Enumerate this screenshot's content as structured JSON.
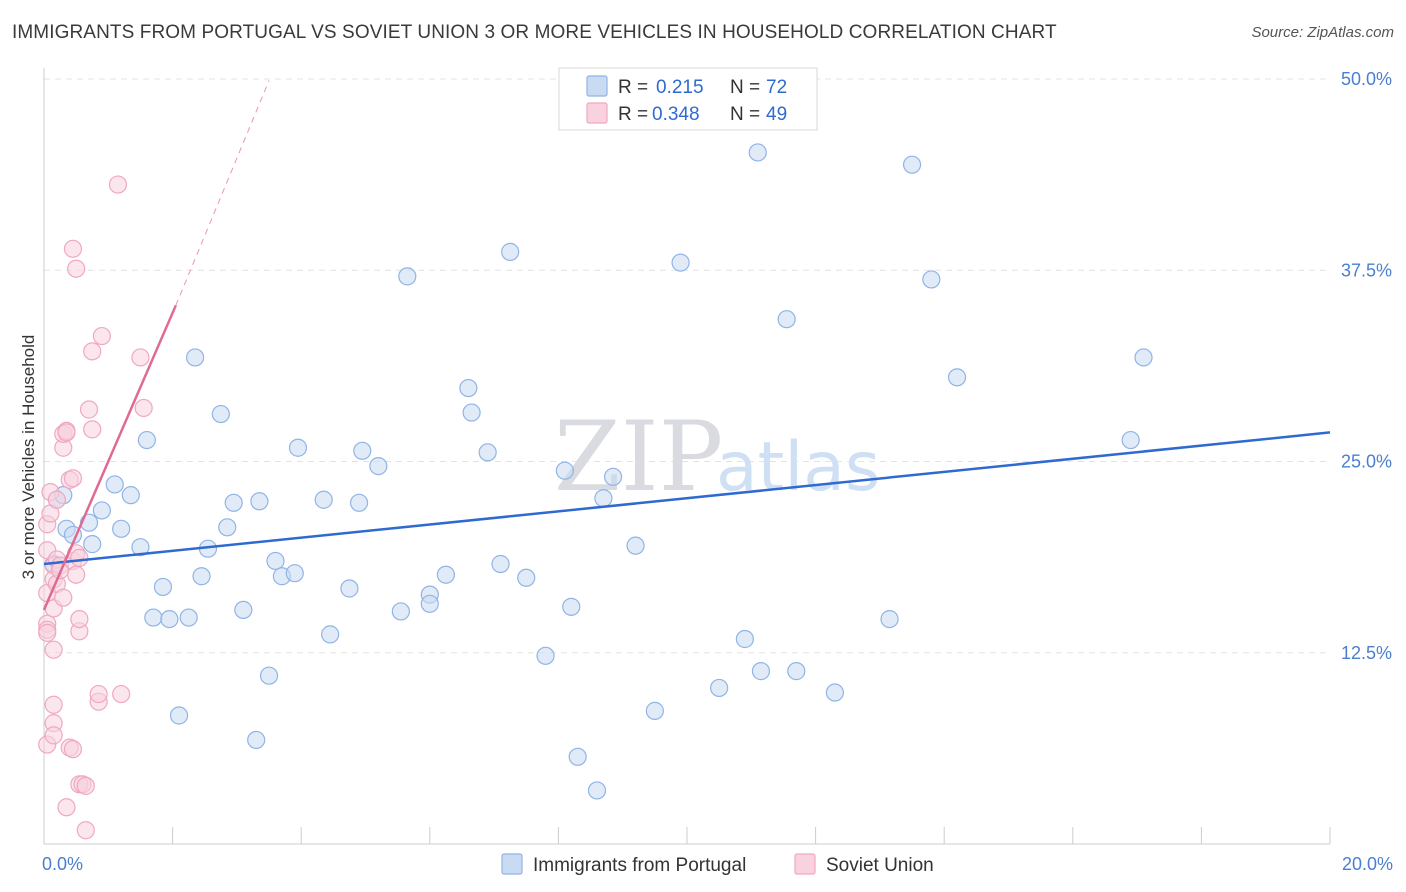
{
  "header": {
    "title": "IMMIGRANTS FROM PORTUGAL VS SOVIET UNION 3 OR MORE VEHICLES IN HOUSEHOLD CORRELATION CHART",
    "source": "Source: ZipAtlas.com"
  },
  "watermark": {
    "zip": "ZIP",
    "atlas": "atlas"
  },
  "chart_data": {
    "type": "scatter",
    "title": "IMMIGRANTS FROM PORTUGAL VS SOVIET UNION 3 OR MORE VEHICLES IN HOUSEHOLD CORRELATION CHART",
    "xlabel": "",
    "ylabel": "3 or more Vehicles in Household",
    "xlim": [
      0,
      20
    ],
    "ylim": [
      0,
      50
    ],
    "x_tick_labels": [
      {
        "value": 0,
        "label": "0.0%"
      },
      {
        "value": 20,
        "label": "20.0%"
      }
    ],
    "y_tick_labels": [
      {
        "value": 12.5,
        "label": "12.5%"
      },
      {
        "value": 25,
        "label": "25.0%"
      },
      {
        "value": 37.5,
        "label": "37.5%"
      },
      {
        "value": 50,
        "label": "50.0%"
      }
    ],
    "legend_position": "top-center",
    "legend": [
      {
        "r_label": "R =",
        "r_value": "0.215",
        "n_label": "N =",
        "n_value": "72"
      },
      {
        "r_label": "R =",
        "r_value": "0.348",
        "n_label": "N =",
        "n_value": "49"
      }
    ],
    "series": [
      {
        "name": "Immigrants from Portugal",
        "color": "#8fb4e6",
        "fill": "#c9dbf3",
        "trend_color": "#2f6ad0",
        "trend": {
          "x": [
            0,
            20
          ],
          "y": [
            18.3,
            26.9
          ],
          "dashed_extension": false
        },
        "points": [
          [
            0.15,
            18.3
          ],
          [
            0.2,
            22.5
          ],
          [
            0.3,
            22.8
          ],
          [
            0.35,
            20.6
          ],
          [
            0.45,
            20.2
          ],
          [
            0.7,
            21.0
          ],
          [
            0.75,
            19.6
          ],
          [
            0.9,
            21.8
          ],
          [
            1.1,
            23.5
          ],
          [
            1.2,
            20.6
          ],
          [
            1.35,
            22.8
          ],
          [
            1.5,
            19.4
          ],
          [
            1.6,
            26.4
          ],
          [
            1.7,
            14.8
          ],
          [
            1.85,
            16.8
          ],
          [
            1.95,
            14.7
          ],
          [
            2.1,
            8.4
          ],
          [
            2.25,
            14.8
          ],
          [
            2.35,
            31.8
          ],
          [
            2.45,
            17.5
          ],
          [
            2.55,
            19.3
          ],
          [
            2.75,
            28.1
          ],
          [
            2.85,
            20.7
          ],
          [
            2.95,
            22.3
          ],
          [
            3.1,
            15.3
          ],
          [
            3.3,
            6.8
          ],
          [
            3.35,
            22.4
          ],
          [
            3.5,
            11.0
          ],
          [
            3.6,
            18.5
          ],
          [
            3.7,
            17.5
          ],
          [
            3.9,
            17.7
          ],
          [
            3.95,
            25.9
          ],
          [
            4.35,
            22.5
          ],
          [
            4.45,
            13.7
          ],
          [
            4.75,
            16.7
          ],
          [
            4.9,
            22.3
          ],
          [
            4.95,
            25.7
          ],
          [
            5.2,
            24.7
          ],
          [
            5.55,
            15.2
          ],
          [
            5.65,
            37.1
          ],
          [
            6.0,
            16.3
          ],
          [
            6.0,
            15.7
          ],
          [
            6.25,
            17.6
          ],
          [
            6.6,
            29.8
          ],
          [
            6.65,
            28.2
          ],
          [
            6.9,
            25.6
          ],
          [
            7.1,
            18.3
          ],
          [
            7.25,
            38.7
          ],
          [
            7.5,
            17.4
          ],
          [
            7.8,
            12.3
          ],
          [
            8.1,
            24.4
          ],
          [
            8.2,
            15.5
          ],
          [
            8.3,
            5.7
          ],
          [
            8.6,
            3.5
          ],
          [
            8.7,
            22.6
          ],
          [
            8.85,
            24.0
          ],
          [
            9.2,
            19.5
          ],
          [
            9.5,
            8.7
          ],
          [
            9.9,
            38.0
          ],
          [
            10.5,
            10.2
          ],
          [
            10.9,
            13.4
          ],
          [
            11.1,
            45.2
          ],
          [
            11.15,
            11.3
          ],
          [
            11.55,
            34.3
          ],
          [
            11.7,
            11.3
          ],
          [
            12.3,
            9.9
          ],
          [
            13.15,
            14.7
          ],
          [
            13.5,
            44.4
          ],
          [
            13.8,
            36.9
          ],
          [
            14.2,
            30.5
          ],
          [
            16.9,
            26.4
          ],
          [
            17.1,
            31.8
          ]
        ]
      },
      {
        "name": "Soviet Union",
        "color": "#f0a8c0",
        "fill": "#f8d2df",
        "trend_color": "#e06a94",
        "trend": {
          "x": [
            0,
            2.05
          ],
          "y": [
            15.3,
            35.2
          ],
          "dashed_extension": true,
          "dashed_to": [
            3.5,
            49.9
          ]
        },
        "points": [
          [
            0.05,
            20.9
          ],
          [
            0.05,
            19.2
          ],
          [
            0.05,
            16.4
          ],
          [
            0.05,
            14.4
          ],
          [
            0.05,
            14.0
          ],
          [
            0.05,
            13.8
          ],
          [
            0.05,
            6.5
          ],
          [
            0.1,
            23.0
          ],
          [
            0.1,
            21.6
          ],
          [
            0.15,
            18.2
          ],
          [
            0.15,
            17.3
          ],
          [
            0.15,
            15.4
          ],
          [
            0.15,
            12.7
          ],
          [
            0.15,
            9.1
          ],
          [
            0.15,
            7.9
          ],
          [
            0.15,
            7.1
          ],
          [
            0.2,
            22.5
          ],
          [
            0.2,
            17.0
          ],
          [
            0.2,
            18.6
          ],
          [
            0.25,
            18.2
          ],
          [
            0.25,
            17.9
          ],
          [
            0.3,
            16.1
          ],
          [
            0.3,
            25.9
          ],
          [
            0.3,
            26.8
          ],
          [
            0.35,
            27.0
          ],
          [
            0.35,
            26.9
          ],
          [
            0.35,
            2.4
          ],
          [
            0.4,
            23.8
          ],
          [
            0.4,
            6.3
          ],
          [
            0.45,
            23.9
          ],
          [
            0.45,
            18.5
          ],
          [
            0.45,
            6.2
          ],
          [
            0.45,
            38.9
          ],
          [
            0.5,
            37.6
          ],
          [
            0.55,
            3.9
          ],
          [
            0.55,
            13.9
          ],
          [
            0.6,
            3.9
          ],
          [
            0.65,
            3.8
          ],
          [
            0.5,
            19.0
          ],
          [
            0.55,
            18.7
          ],
          [
            0.5,
            17.6
          ],
          [
            0.55,
            14.7
          ],
          [
            0.7,
            28.4
          ],
          [
            0.75,
            32.2
          ],
          [
            0.75,
            27.1
          ],
          [
            0.65,
            0.9
          ],
          [
            0.85,
            9.3
          ],
          [
            0.85,
            9.8
          ],
          [
            0.9,
            33.2
          ]
        ]
      }
    ]
  },
  "extra_points": {
    "soviet_high": [
      1.15,
      43.1
    ],
    "soviet_mid": [
      1.5,
      31.8
    ],
    "soviet_mid2": [
      1.55,
      28.5
    ],
    "soviet_low": [
      1.2,
      9.8
    ]
  }
}
